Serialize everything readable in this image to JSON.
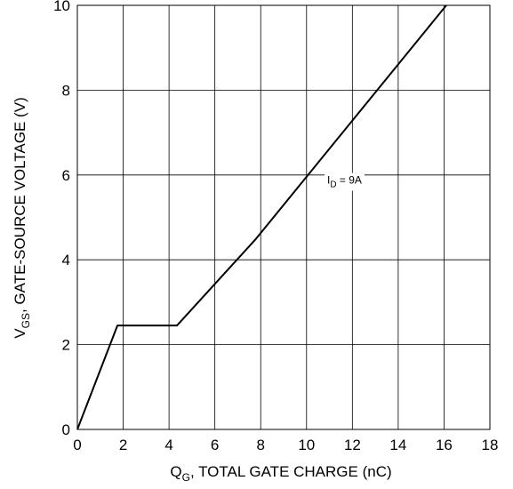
{
  "chart_data": {
    "type": "line",
    "xlabel_main": "Q",
    "xlabel_sub": "G",
    "xlabel_rest": ", TOTAL GATE CHARGE (nC)",
    "ylabel_main": "V",
    "ylabel_sub": "GS",
    "ylabel_rest": ", GATE-SOURCE VOLTAGE (V)",
    "xlim": [
      0,
      18
    ],
    "ylim": [
      0,
      10
    ],
    "xticks": [
      "0",
      "2",
      "4",
      "6",
      "8",
      "10",
      "12",
      "14",
      "16",
      "18"
    ],
    "yticks": [
      "0",
      "2",
      "4",
      "6",
      "8",
      "10"
    ],
    "grid": true,
    "series": [
      {
        "x": [
          0,
          1.75,
          4.35,
          7.8,
          16.1
        ],
        "y": [
          0,
          2.45,
          2.45,
          4.5,
          10
        ],
        "color": "#000000"
      }
    ],
    "annotation": {
      "main": "I",
      "sub": "D",
      "rest": " = 9A",
      "at_x": 10.9,
      "at_y": 5.9
    }
  }
}
